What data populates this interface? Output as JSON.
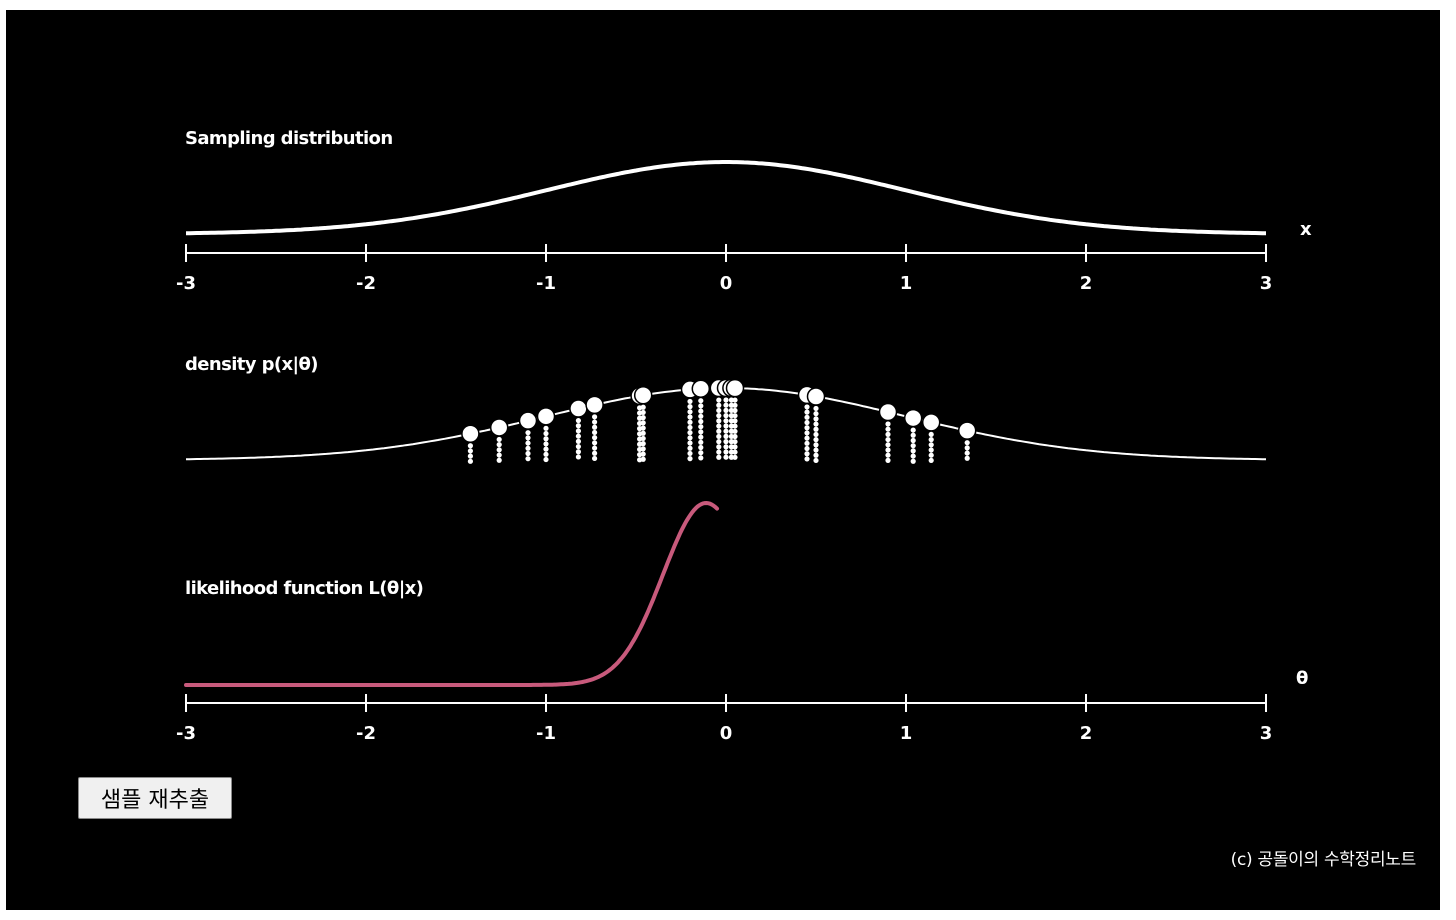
{
  "panels": {
    "sampling_title": "Sampling distribution",
    "density_title": "density p(x|θ)",
    "likelihood_title": "likelihood function L(θ|x)"
  },
  "axes": {
    "x_label": "x",
    "theta_label": "θ",
    "ticks": [
      "-3",
      "-2",
      "-1",
      "0",
      "1",
      "2",
      "3"
    ]
  },
  "samples": [
    -1.42,
    -1.26,
    -1.1,
    -1.0,
    -0.82,
    -0.73,
    -0.48,
    -0.46,
    -0.2,
    -0.14,
    -0.04,
    0.0,
    0.03,
    0.05,
    0.45,
    0.5,
    0.9,
    1.04,
    1.14,
    1.34
  ],
  "colors": {
    "likelihood": "#c85a7c",
    "curve": "#ffffff",
    "background": "#000000"
  },
  "button": {
    "resample_label": "샘플 재추출"
  },
  "footer": {
    "copyright": "(c) 공돌이의 수학정리노트"
  }
}
